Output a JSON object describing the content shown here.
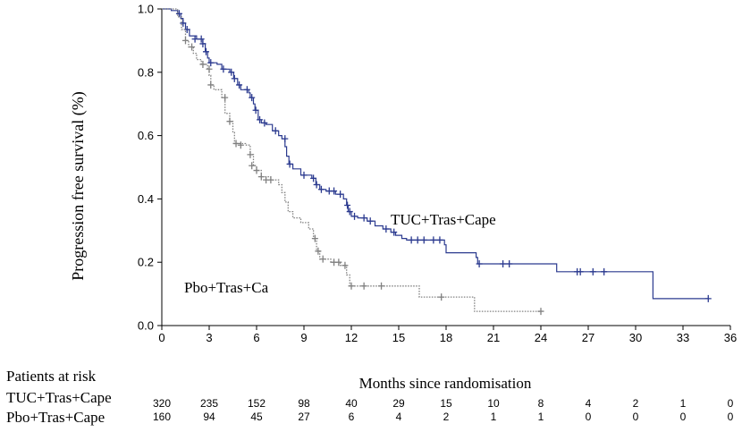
{
  "chart_data": {
    "type": "line",
    "title": "",
    "xlabel": "Months since randomisation",
    "ylabel": "Progression free survival (%)",
    "xlim": [
      0,
      36
    ],
    "ylim": [
      0,
      1.0
    ],
    "x_ticks": [
      "0",
      "3",
      "6",
      "9",
      "12",
      "15",
      "18",
      "21",
      "24",
      "27",
      "30",
      "33",
      "36"
    ],
    "y_ticks": [
      "0.0",
      "0.2",
      "0.4",
      "0.6",
      "0.8",
      "1.0"
    ],
    "grid": false,
    "series": [
      {
        "name": "TUC+Tras+Cape",
        "label": "TUC+Tras+Cape",
        "color": "#2b3a8f",
        "style": "solid",
        "steps": [
          [
            0,
            1.0
          ],
          [
            0.6,
            0.995
          ],
          [
            1.0,
            0.985
          ],
          [
            1.2,
            0.97
          ],
          [
            1.35,
            0.955
          ],
          [
            1.5,
            0.935
          ],
          [
            1.75,
            0.915
          ],
          [
            2.2,
            0.905
          ],
          [
            2.6,
            0.89
          ],
          [
            2.75,
            0.865
          ],
          [
            2.9,
            0.845
          ],
          [
            3.0,
            0.83
          ],
          [
            3.5,
            0.825
          ],
          [
            3.8,
            0.81
          ],
          [
            4.3,
            0.8
          ],
          [
            4.55,
            0.78
          ],
          [
            4.8,
            0.76
          ],
          [
            5.0,
            0.745
          ],
          [
            5.5,
            0.735
          ],
          [
            5.6,
            0.72
          ],
          [
            5.8,
            0.7
          ],
          [
            5.9,
            0.68
          ],
          [
            6.1,
            0.65
          ],
          [
            6.3,
            0.64
          ],
          [
            6.6,
            0.635
          ],
          [
            7.0,
            0.615
          ],
          [
            7.4,
            0.6
          ],
          [
            7.6,
            0.59
          ],
          [
            7.8,
            0.565
          ],
          [
            7.9,
            0.535
          ],
          [
            8.05,
            0.51
          ],
          [
            8.3,
            0.495
          ],
          [
            8.8,
            0.475
          ],
          [
            9.5,
            0.465
          ],
          [
            9.75,
            0.445
          ],
          [
            10.0,
            0.43
          ],
          [
            10.4,
            0.425
          ],
          [
            11.0,
            0.415
          ],
          [
            11.5,
            0.4
          ],
          [
            11.7,
            0.38
          ],
          [
            11.8,
            0.36
          ],
          [
            12.0,
            0.345
          ],
          [
            12.4,
            0.34
          ],
          [
            13.0,
            0.33
          ],
          [
            13.5,
            0.315
          ],
          [
            14.0,
            0.305
          ],
          [
            14.5,
            0.295
          ],
          [
            14.8,
            0.285
          ],
          [
            15.2,
            0.275
          ],
          [
            15.5,
            0.27
          ],
          [
            17.9,
            0.255
          ],
          [
            18.0,
            0.23
          ],
          [
            19.9,
            0.215
          ],
          [
            20.0,
            0.195
          ],
          [
            25.0,
            0.17
          ],
          [
            31.1,
            0.085
          ],
          [
            34.6,
            0.085
          ]
        ],
        "censors": [
          [
            1.1,
            0.985
          ],
          [
            1.35,
            0.955
          ],
          [
            1.6,
            0.935
          ],
          [
            2.1,
            0.905
          ],
          [
            2.5,
            0.905
          ],
          [
            2.6,
            0.89
          ],
          [
            2.8,
            0.865
          ],
          [
            3.1,
            0.83
          ],
          [
            3.9,
            0.81
          ],
          [
            4.4,
            0.8
          ],
          [
            4.6,
            0.78
          ],
          [
            4.9,
            0.76
          ],
          [
            5.4,
            0.745
          ],
          [
            5.7,
            0.72
          ],
          [
            5.95,
            0.68
          ],
          [
            6.2,
            0.65
          ],
          [
            6.5,
            0.64
          ],
          [
            7.2,
            0.615
          ],
          [
            7.8,
            0.59
          ],
          [
            8.1,
            0.51
          ],
          [
            9.0,
            0.475
          ],
          [
            9.6,
            0.465
          ],
          [
            9.8,
            0.445
          ],
          [
            10.1,
            0.43
          ],
          [
            10.6,
            0.425
          ],
          [
            10.9,
            0.425
          ],
          [
            11.3,
            0.415
          ],
          [
            11.75,
            0.38
          ],
          [
            11.9,
            0.36
          ],
          [
            12.2,
            0.345
          ],
          [
            12.8,
            0.34
          ],
          [
            13.2,
            0.33
          ],
          [
            14.2,
            0.305
          ],
          [
            14.7,
            0.295
          ],
          [
            15.8,
            0.27
          ],
          [
            16.2,
            0.27
          ],
          [
            16.6,
            0.27
          ],
          [
            17.2,
            0.27
          ],
          [
            17.6,
            0.27
          ],
          [
            20.1,
            0.195
          ],
          [
            21.6,
            0.195
          ],
          [
            22.0,
            0.195
          ],
          [
            26.3,
            0.17
          ],
          [
            26.5,
            0.17
          ],
          [
            27.3,
            0.17
          ],
          [
            28.0,
            0.17
          ],
          [
            34.6,
            0.085
          ]
        ]
      },
      {
        "name": "Pbo+Tras+Cape",
        "label": "Pbo+Tras+Ca",
        "color": "#808080",
        "style": "dotted",
        "steps": [
          [
            0,
            1.0
          ],
          [
            1.0,
            0.975
          ],
          [
            1.25,
            0.935
          ],
          [
            1.5,
            0.9
          ],
          [
            1.7,
            0.88
          ],
          [
            2.0,
            0.86
          ],
          [
            2.2,
            0.84
          ],
          [
            2.5,
            0.825
          ],
          [
            2.9,
            0.81
          ],
          [
            3.0,
            0.79
          ],
          [
            3.1,
            0.76
          ],
          [
            3.3,
            0.745
          ],
          [
            3.8,
            0.72
          ],
          [
            4.0,
            0.67
          ],
          [
            4.3,
            0.645
          ],
          [
            4.5,
            0.61
          ],
          [
            4.6,
            0.575
          ],
          [
            5.3,
            0.57
          ],
          [
            5.6,
            0.54
          ],
          [
            5.8,
            0.505
          ],
          [
            6.0,
            0.49
          ],
          [
            6.3,
            0.47
          ],
          [
            6.9,
            0.46
          ],
          [
            7.4,
            0.445
          ],
          [
            7.6,
            0.42
          ],
          [
            7.8,
            0.39
          ],
          [
            8.0,
            0.36
          ],
          [
            8.3,
            0.34
          ],
          [
            8.8,
            0.325
          ],
          [
            9.3,
            0.305
          ],
          [
            9.6,
            0.275
          ],
          [
            9.8,
            0.235
          ],
          [
            10.0,
            0.21
          ],
          [
            10.7,
            0.2
          ],
          [
            11.3,
            0.19
          ],
          [
            11.7,
            0.16
          ],
          [
            11.9,
            0.125
          ],
          [
            16.3,
            0.09
          ],
          [
            19.8,
            0.045
          ],
          [
            24.0,
            0.045
          ]
        ],
        "censors": [
          [
            1.5,
            0.9
          ],
          [
            1.9,
            0.88
          ],
          [
            2.6,
            0.825
          ],
          [
            3.0,
            0.81
          ],
          [
            3.1,
            0.76
          ],
          [
            4.0,
            0.72
          ],
          [
            4.3,
            0.645
          ],
          [
            4.7,
            0.575
          ],
          [
            5.0,
            0.57
          ],
          [
            5.6,
            0.54
          ],
          [
            5.7,
            0.505
          ],
          [
            6.0,
            0.49
          ],
          [
            6.3,
            0.47
          ],
          [
            6.6,
            0.46
          ],
          [
            6.9,
            0.46
          ],
          [
            9.7,
            0.275
          ],
          [
            9.9,
            0.235
          ],
          [
            10.2,
            0.21
          ],
          [
            10.9,
            0.2
          ],
          [
            11.2,
            0.2
          ],
          [
            11.6,
            0.19
          ],
          [
            12.0,
            0.125
          ],
          [
            12.8,
            0.125
          ],
          [
            13.9,
            0.125
          ],
          [
            17.7,
            0.09
          ],
          [
            24.0,
            0.045
          ]
        ]
      }
    ],
    "risk_table": {
      "header": "Patients at risk",
      "timepoints": [
        0,
        3,
        6,
        9,
        12,
        15,
        18,
        21,
        24,
        27,
        30,
        33,
        36
      ],
      "rows": [
        {
          "label": "TUC+Tras+Cape",
          "values": [
            "320",
            "235",
            "152",
            "98",
            "40",
            "29",
            "15",
            "10",
            "8",
            "4",
            "2",
            "1",
            "0"
          ]
        },
        {
          "label": "Pbo+Tras+Cape",
          "values": [
            "160",
            "94",
            "45",
            "27",
            "6",
            "4",
            "2",
            "1",
            "1",
            "0",
            "0",
            "0",
            "0"
          ]
        }
      ]
    }
  }
}
